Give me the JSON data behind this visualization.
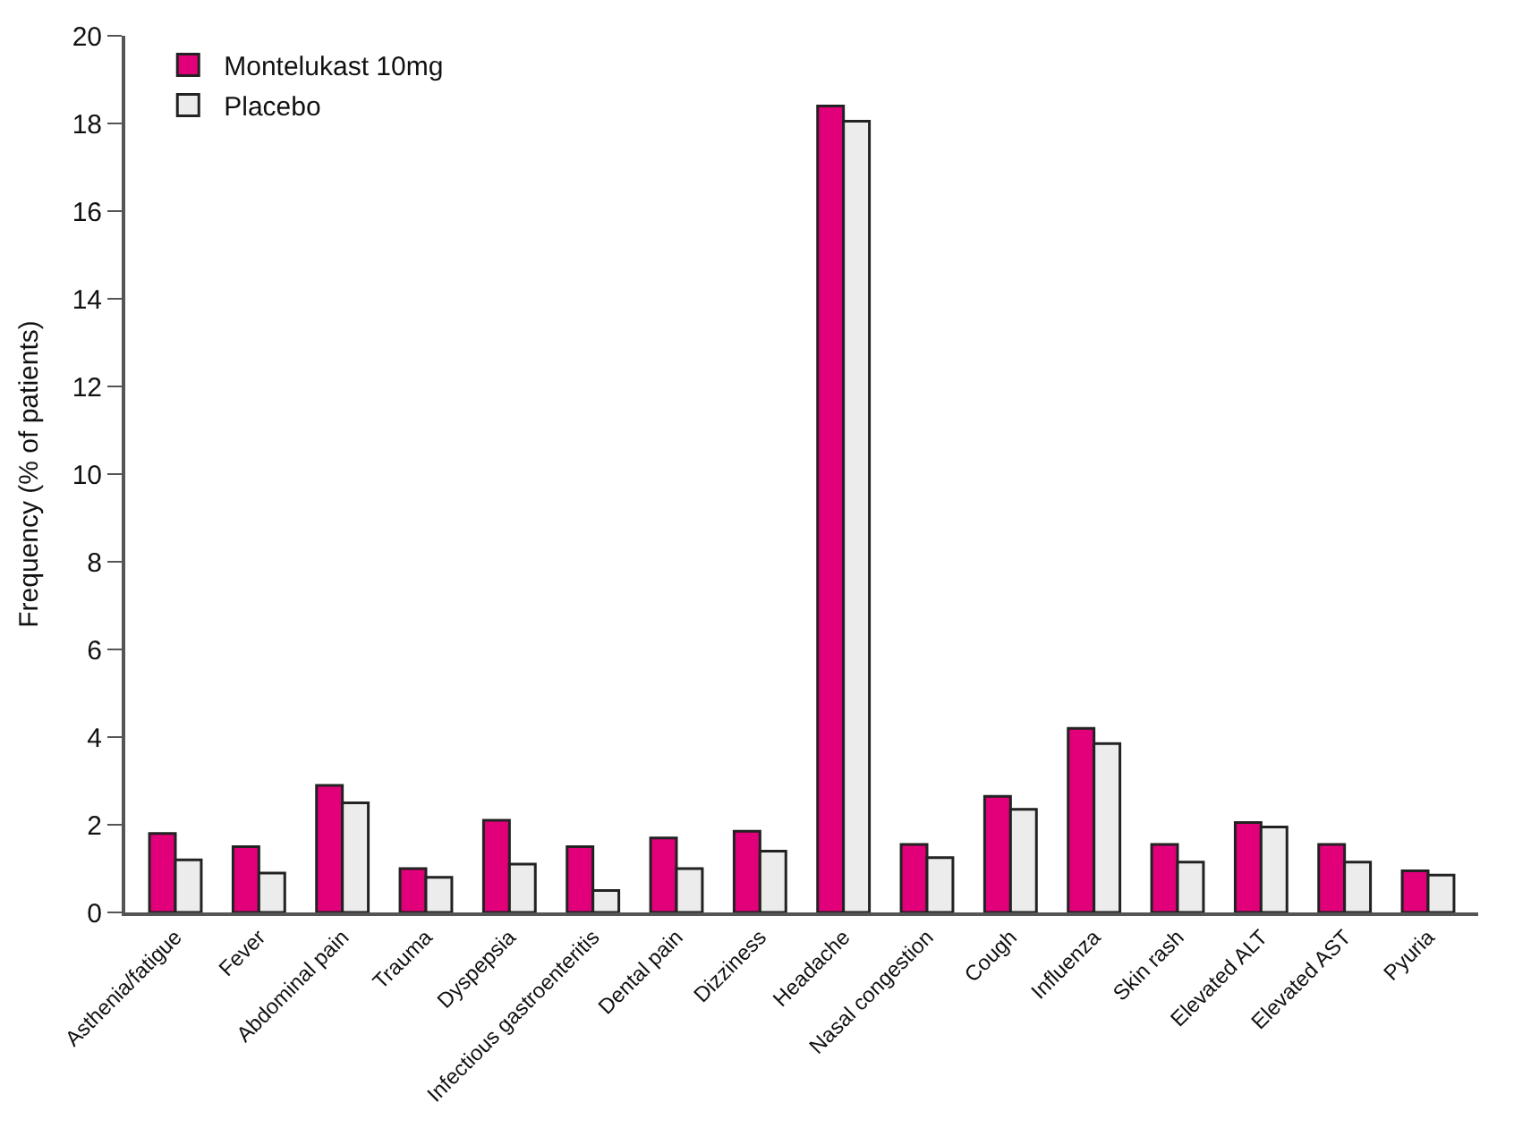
{
  "chart_data": {
    "type": "bar",
    "ylabel": "Frequency (% of patients)",
    "categories": [
      "Asthenia/fatigue",
      "Fever",
      "Abdominal pain",
      "Trauma",
      "Dyspepsia",
      "Infectious gastroenteritis",
      "Dental pain",
      "Dizziness",
      "Headache",
      "Nasal congestion",
      "Cough",
      "Influenza",
      "Skin rash",
      "Elevated ALT",
      "Elevated AST",
      "Pyuria"
    ],
    "series": [
      {
        "name": "Montelukast 10mg",
        "color": "#e2007a",
        "values": [
          1.8,
          1.5,
          2.9,
          1.0,
          2.1,
          1.5,
          1.7,
          1.85,
          18.4,
          1.55,
          2.65,
          4.2,
          1.55,
          2.05,
          1.55,
          0.95
        ]
      },
      {
        "name": "Placebo",
        "color": "#ececec",
        "values": [
          1.2,
          0.9,
          2.5,
          0.8,
          1.1,
          0.5,
          1.0,
          1.4,
          18.05,
          1.25,
          2.35,
          3.85,
          1.15,
          1.95,
          1.15,
          0.85
        ]
      }
    ],
    "ylim": [
      0,
      20
    ],
    "yticks": [
      0,
      2,
      4,
      6,
      8,
      10,
      12,
      14,
      16,
      18,
      20
    ],
    "legend": "top left"
  }
}
